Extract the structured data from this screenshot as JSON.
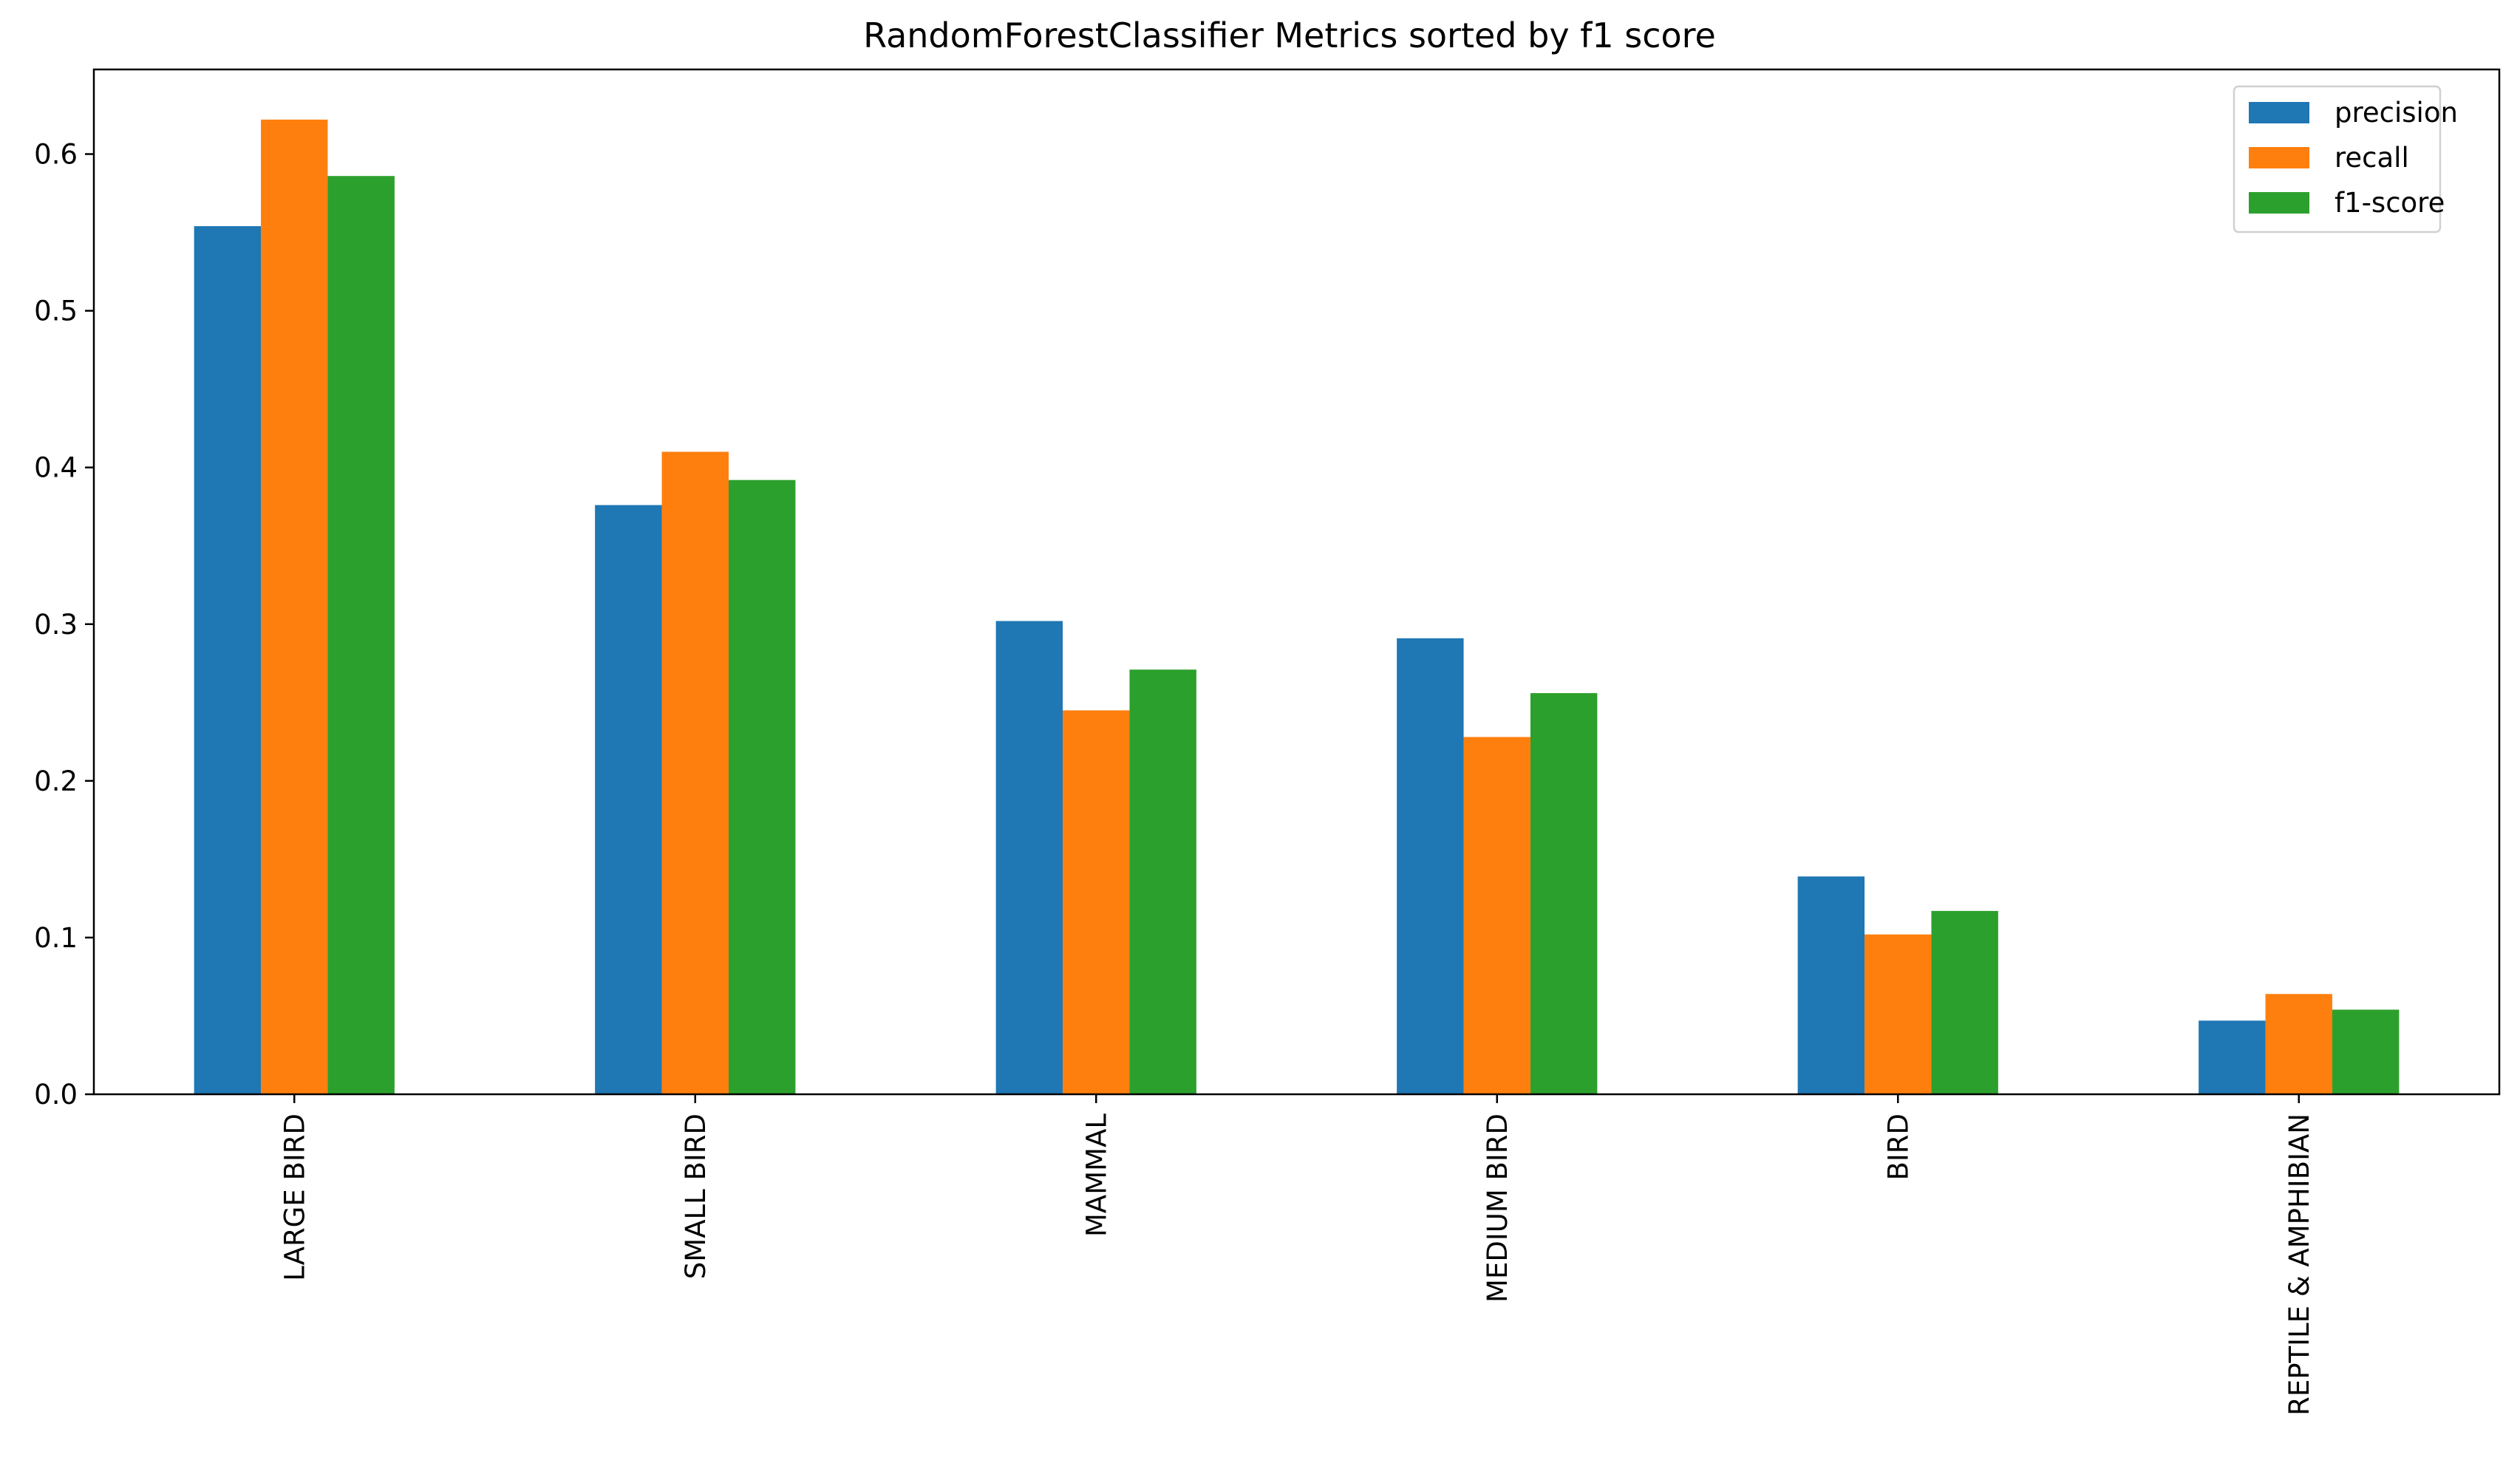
{
  "chart_data": {
    "type": "bar",
    "title": "RandomForestClassifier Metrics sorted by f1 score",
    "xlabel": "",
    "ylabel": "",
    "categories": [
      "LARGE BIRD",
      "SMALL BIRD",
      "MAMMAL",
      "MEDIUM BIRD",
      "BIRD",
      "REPTILE & AMPHIBIAN"
    ],
    "series": [
      {
        "name": "precision",
        "color": "#1f77b4",
        "values": [
          0.554,
          0.376,
          0.302,
          0.291,
          0.139,
          0.047
        ]
      },
      {
        "name": "recall",
        "color": "#ff7f0e",
        "values": [
          0.622,
          0.41,
          0.245,
          0.228,
          0.102,
          0.064
        ]
      },
      {
        "name": "f1-score",
        "color": "#2ca02c",
        "values": [
          0.586,
          0.392,
          0.271,
          0.256,
          0.117,
          0.054
        ]
      }
    ],
    "ylim": [
      0,
      0.654
    ],
    "yticks": [
      0.0,
      0.1,
      0.2,
      0.3,
      0.4,
      0.5,
      0.6
    ],
    "ytick_labels": [
      "0.0",
      "0.1",
      "0.2",
      "0.3",
      "0.4",
      "0.5",
      "0.6"
    ],
    "grid": false,
    "legend_position": "top-right"
  }
}
